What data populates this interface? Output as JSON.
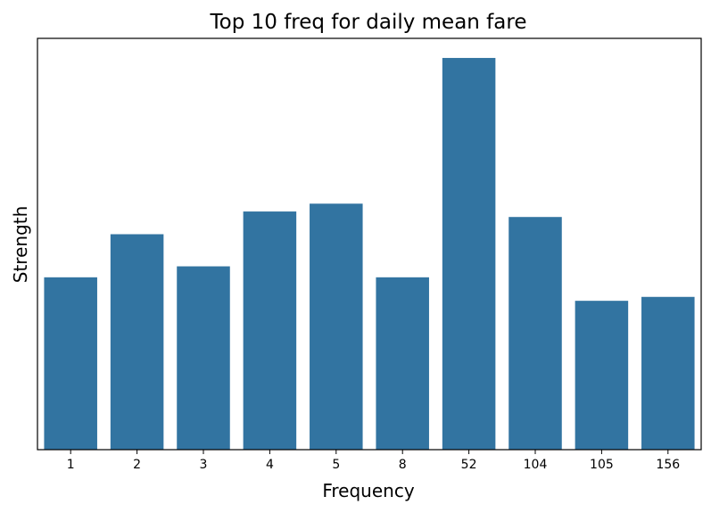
{
  "chart_data": {
    "type": "bar",
    "title": "Top 10 freq for daily mean fare",
    "xlabel": "Frequency",
    "ylabel": "Strength",
    "categories": [
      "1",
      "2",
      "3",
      "4",
      "5",
      "8",
      "52",
      "104",
      "105",
      "156"
    ],
    "values": [
      0.44,
      0.55,
      0.468,
      0.608,
      0.628,
      0.44,
      1.0,
      0.594,
      0.38,
      0.39
    ],
    "ylim": [
      0,
      1.05
    ],
    "yticks_visible": false,
    "grid": false,
    "legend": "none",
    "bar_color": "#3274a1"
  }
}
